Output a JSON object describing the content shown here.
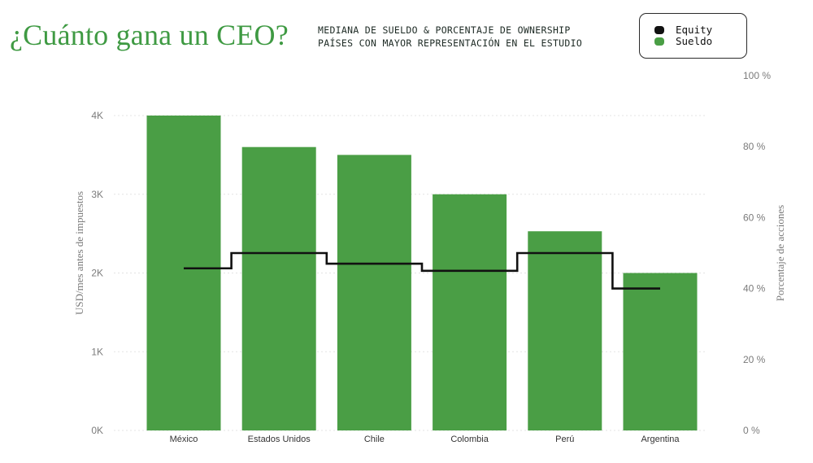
{
  "header": {
    "title": "¿Cuánto gana un CEO?",
    "subtitle_line1": "MEDIANA DE SUELDO & PORCENTAJE DE OWNERSHIP",
    "subtitle_line2": "PAÍSES CON MAYOR REPRESENTACIÓN EN EL ESTUDIO"
  },
  "legend": {
    "items": [
      {
        "label": "Equity",
        "color": "#111111"
      },
      {
        "label": "Sueldo",
        "color": "#4a9e45"
      }
    ]
  },
  "chart_data": {
    "type": "bar",
    "categories": [
      "México",
      "Estados Unidos",
      "Chile",
      "Colombia",
      "Perú",
      "Argentina"
    ],
    "series": [
      {
        "name": "Sueldo",
        "axis": "left",
        "values": [
          4000,
          3600,
          3500,
          3000,
          2530,
          2000
        ],
        "color": "#4a9e45"
      },
      {
        "name": "Equity",
        "axis": "right",
        "type": "step-line",
        "values": [
          45.7,
          50,
          47,
          45,
          50,
          40
        ],
        "color": "#111111"
      }
    ],
    "ylabel": "USD/mes antes de impuestos",
    "y2label": "Porcentaje de acciones",
    "ylim": [
      0,
      4000
    ],
    "y2lim": [
      0,
      100
    ],
    "yticks": [
      "0K",
      "1K",
      "2K",
      "3K",
      "4K"
    ],
    "y2ticks": [
      "0 %",
      "20 %",
      "40 %",
      "60 %",
      "80 %",
      "100 %"
    ],
    "grid": true,
    "legend_position": "top-right"
  }
}
